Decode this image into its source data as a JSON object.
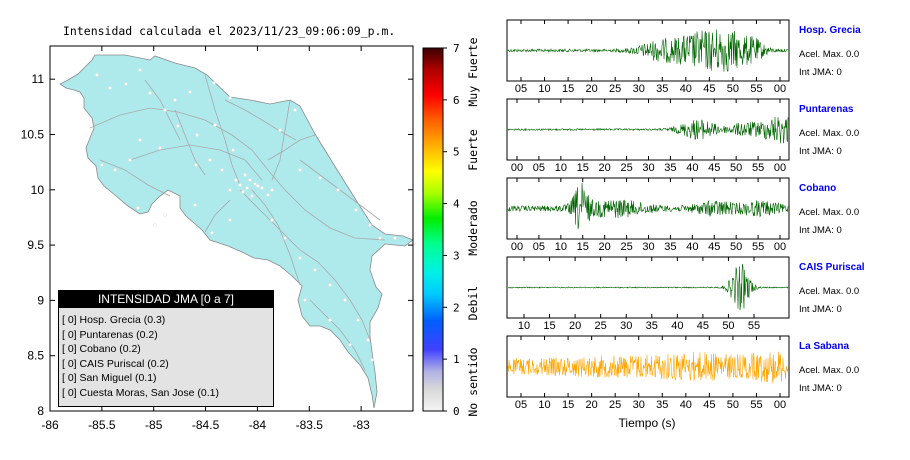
{
  "map": {
    "title": "Intensidad calculada el 2023/11/23_09:06:09_p.m.",
    "lon_ticks": [
      "-86",
      "-85.5",
      "-85",
      "-84.5",
      "-84",
      "-83.5",
      "-83"
    ],
    "lat_ticks": [
      "11",
      "10.5",
      "10",
      "9.5",
      "9",
      "8.5",
      "8"
    ],
    "xlim": [
      -86,
      -82.5
    ],
    "ylim": [
      8,
      11.3
    ],
    "land_color": "#aee9ec"
  },
  "colorbar": {
    "ticks": [
      "0",
      "1",
      "2",
      "3",
      "4",
      "5",
      "6",
      "7"
    ],
    "labels": [
      "No sentido",
      "Debil",
      "Moderado",
      "Fuerte",
      "Muy Fuerte"
    ]
  },
  "legend": {
    "title": "INTENSIDAD JMA [0 a 7]",
    "items": [
      "[ 0]  Hosp. Grecia (0.3)",
      "[ 0]  Puntarenas (0.2)",
      "[ 0]  Cobano (0.2)",
      "[ 0]  CAIS Puriscal (0.2)",
      "[ 0]  San Miguel (0.1)",
      "[ 0]  Cuesta Moras, San Jose (0.1)"
    ]
  },
  "traces": {
    "xlabel": "Tiempo (s)",
    "stations": [
      {
        "name": "Hosp. Grecia",
        "accel": "Acel. Max. 0.0",
        "jma": "Int JMA: 0",
        "color": "#006600",
        "ticks": [
          "05",
          "10",
          "15",
          "20",
          "25",
          "30",
          "35",
          "40",
          "45",
          "50",
          "55",
          "00"
        ]
      },
      {
        "name": "Puntarenas",
        "accel": "Acel. Max. 0.0",
        "jma": "Int JMA: 0",
        "color": "#006600",
        "ticks": [
          "00",
          "05",
          "10",
          "15",
          "20",
          "25",
          "30",
          "35",
          "40",
          "45",
          "50",
          "55",
          "00"
        ]
      },
      {
        "name": "Cobano",
        "accel": "Acel. Max. 0.0",
        "jma": "Int JMA: 0",
        "color": "#006600",
        "ticks": [
          "00",
          "05",
          "10",
          "15",
          "20",
          "25",
          "30",
          "35",
          "40",
          "45",
          "50",
          "55",
          "00"
        ]
      },
      {
        "name": "CAIS Puriscal",
        "accel": "Acel. Max. 0.0",
        "jma": "Int JMA: 0",
        "color": "#006600",
        "ticks": [
          "10",
          "15",
          "20",
          "25",
          "30",
          "35",
          "40",
          "45",
          "50",
          "55"
        ]
      },
      {
        "name": "La Sabana",
        "accel": "Acel. Max. 0.0",
        "jma": "Int JMA: 0",
        "color": "#ffa500",
        "ticks": [
          "05",
          "10",
          "15",
          "20",
          "25",
          "30",
          "35",
          "40",
          "45",
          "50",
          "55",
          "00"
        ]
      }
    ]
  },
  "chart_data": [
    {
      "type": "scatter",
      "title": "Intensidad calculada el 2023/11/23_09:06:09_p.m.",
      "xlim": [
        -86,
        -82.5
      ],
      "ylim": [
        8,
        11.3
      ],
      "x_ticks": [
        -86,
        -85.5,
        -85,
        -84.5,
        -84,
        -83.5,
        -83
      ],
      "y_ticks": [
        8,
        8.5,
        9,
        9.5,
        10,
        10.5,
        11
      ],
      "legend_title": "INTENSIDAD JMA [0 a 7]",
      "stations": [
        {
          "name": "Hosp. Grecia",
          "jma": 0,
          "value": 0.3
        },
        {
          "name": "Puntarenas",
          "jma": 0,
          "value": 0.2
        },
        {
          "name": "Cobano",
          "jma": 0,
          "value": 0.2
        },
        {
          "name": "CAIS Puriscal",
          "jma": 0,
          "value": 0.2
        },
        {
          "name": "San Miguel",
          "jma": 0,
          "value": 0.1
        },
        {
          "name": "Cuesta Moras, San Jose",
          "jma": 0,
          "value": 0.1
        }
      ],
      "colorbar_range": [
        0,
        7
      ]
    },
    {
      "type": "line",
      "xlabel": "Tiempo (s)",
      "series": [
        {
          "name": "Hosp. Grecia",
          "max_accel": 0.0,
          "jma": 0
        },
        {
          "name": "Puntarenas",
          "max_accel": 0.0,
          "jma": 0
        },
        {
          "name": "Cobano",
          "max_accel": 0.0,
          "jma": 0
        },
        {
          "name": "CAIS Puriscal",
          "max_accel": 0.0,
          "jma": 0
        },
        {
          "name": "La Sabana",
          "max_accel": 0.0,
          "jma": 0
        }
      ]
    }
  ]
}
